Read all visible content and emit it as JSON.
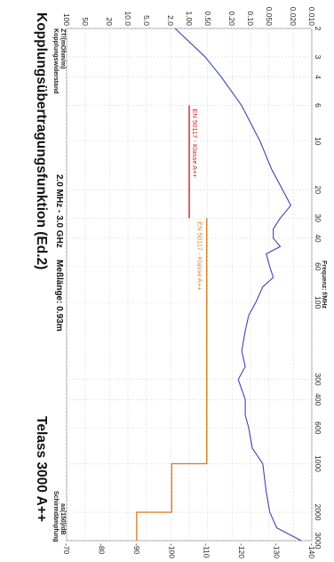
{
  "chart_data": {
    "type": "line",
    "title": "Kopplungsübertragungsfunktion (Ed.2)",
    "title_right": "Telass 3000 A++",
    "subtitle_range": "2.0 MHz - 3.0 GHz",
    "subtitle_length": "Meßlänge: 0.93m",
    "xlabel": "Frequenz: f/MHz",
    "ylabel_left_line1": "Kopplungswiderstand",
    "ylabel_left_line2": "ZT/(mOhm/m)",
    "ylabel_right_line1": "Schirmdämpfung",
    "ylabel_right_line2": "as(150)/dB",
    "x_scale": "log",
    "xlim": [
      2,
      3000
    ],
    "x_ticks": [
      "2",
      "3",
      "4",
      "6",
      "10",
      "20",
      "30",
      "40",
      "60",
      "100",
      "300",
      "400",
      "600",
      "1000",
      "2000",
      "3000"
    ],
    "left_scale": "log",
    "ylim_left": [
      0.01,
      100
    ],
    "y_ticks_left": [
      "100",
      "50",
      "20",
      "10.0",
      "5.0",
      "2.0",
      "1.00",
      "0.50",
      "0.20",
      "0.10",
      "0.050",
      "0.020",
      "0.010"
    ],
    "y_ticks_right": [
      "-70",
      "-80",
      "-90",
      "-100",
      "-110",
      "-120",
      "-130",
      "-140"
    ],
    "ylim_right": [
      -70,
      -140
    ],
    "limit_lines": [
      {
        "label": "EN 50117 - Klasse A++",
        "color": "#c81e1e",
        "x": [
          6,
          30
        ],
        "zt": [
          1.0,
          1.0
        ]
      },
      {
        "label": "EN 50117 - Klasse A++",
        "color": "#d9822b",
        "points": [
          [
            30,
            -110
          ],
          [
            1000,
            -110
          ],
          [
            1000,
            -100
          ],
          [
            2000,
            -100
          ],
          [
            2000,
            -90
          ],
          [
            3000,
            -90
          ]
        ]
      }
    ],
    "series": [
      {
        "color": "#3b45b0",
        "zt_segment": {
          "x": [
            2,
            3,
            4,
            6,
            10,
            15,
            20,
            25
          ],
          "y": [
            1.7,
            0.55,
            0.3,
            0.14,
            0.07,
            0.045,
            0.03,
            0.022
          ]
        },
        "as_segment": {
          "x": [
            25,
            30,
            35,
            40,
            45,
            50,
            60,
            70,
            80,
            100,
            120,
            150,
            200,
            250,
            300,
            400,
            500,
            600,
            800,
            1000,
            1500,
            2000,
            2500,
            3000
          ],
          "y": [
            -134,
            -131,
            -129,
            -129,
            -131,
            -127,
            -128,
            -129,
            -126,
            -124,
            -122,
            -121,
            -120,
            -121,
            -119,
            -121,
            -121,
            -122,
            -123,
            -126,
            -127,
            -128,
            -130,
            -137
          ]
        }
      }
    ],
    "grid": true
  }
}
